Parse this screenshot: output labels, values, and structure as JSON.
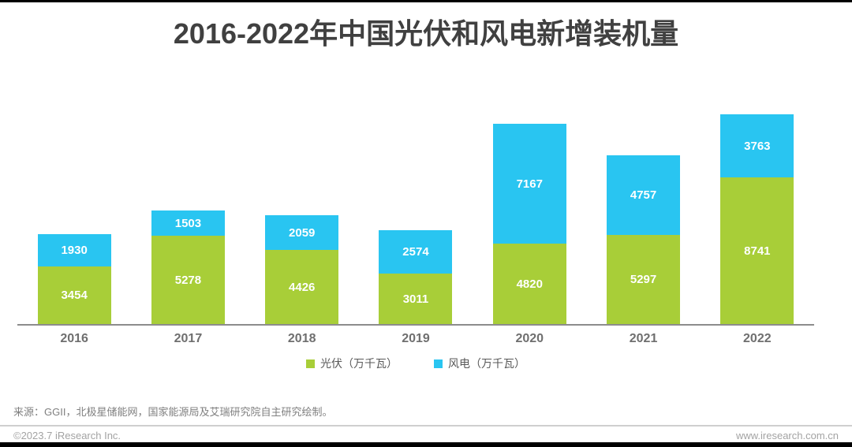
{
  "page": {
    "title": "2016-2022年中国光伏和风电新增装机量",
    "source_note": "来源：GGII，北极星储能网，国家能源局及艾瑞研究院自主研究绘制。",
    "footer": {
      "copyright": "©2023.7 iResearch Inc.",
      "website": "www.iresearch.com.cn"
    }
  },
  "chart_data": {
    "type": "bar",
    "stacked": true,
    "title": "2016-2022年中国光伏和风电新增装机量",
    "categories": [
      "2016",
      "2017",
      "2018",
      "2019",
      "2020",
      "2021",
      "2022"
    ],
    "series": [
      {
        "name": "光伏（万千瓦）",
        "color": "#A8CE38",
        "values": [
          3454,
          5278,
          4426,
          3011,
          4820,
          5297,
          8741
        ]
      },
      {
        "name": "风电（万千瓦）",
        "color": "#29C5F1",
        "values": [
          1930,
          1503,
          2059,
          2574,
          7167,
          4757,
          3763
        ]
      }
    ],
    "value_labels": "inside-center-white",
    "legend_position": "bottom",
    "grid": "off",
    "ylim": [
      0,
      12700
    ],
    "colors": {
      "axis_line": "#8C8C8C",
      "title_text": "#404040",
      "tick_text": "#6F6F6F",
      "top_bar": "#000000",
      "bottom_bar": "#000000"
    }
  }
}
